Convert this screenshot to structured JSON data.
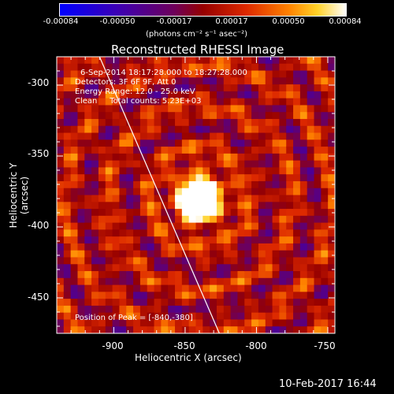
{
  "colorbar": {
    "ticks": [
      "-0.00084",
      "-0.00050",
      "-0.00017",
      "0.00017",
      "0.00050",
      "0.00084"
    ],
    "units": "(photons cm⁻² s⁻¹ asec⁻²)",
    "range": [
      -0.00084,
      0.00084
    ]
  },
  "chart_data": {
    "type": "heatmap",
    "title": "Reconstructed RHESSI Image",
    "xlabel": "Heliocentric X (arcsec)",
    "ylabel": "Heliocentric Y (arcsec)",
    "xlim": [
      -940,
      -745
    ],
    "ylim": [
      -475,
      -280
    ],
    "xticks": [
      -900,
      -850,
      -800,
      -750
    ],
    "yticks": [
      -300,
      -350,
      -400,
      -450
    ],
    "peak": {
      "x": -840,
      "y": -380
    },
    "annotations": {
      "time": "6-Sep-2014 18:17:28.000 to 18:27:28.000",
      "detectors": "Detectors: 3F 6F 9F, Att 0",
      "energy": "Energy Range: 12.0 - 25.0 keV",
      "clean": "Clean     Total counts: 5.23E+03",
      "peak_text": "Position of Peak = [-840,-380]"
    },
    "limb_line": {
      "x1": -910,
      "y1": -280,
      "x2": -826,
      "y2": -475
    }
  },
  "footer": {
    "date": "10-Feb-2017 16:44"
  }
}
